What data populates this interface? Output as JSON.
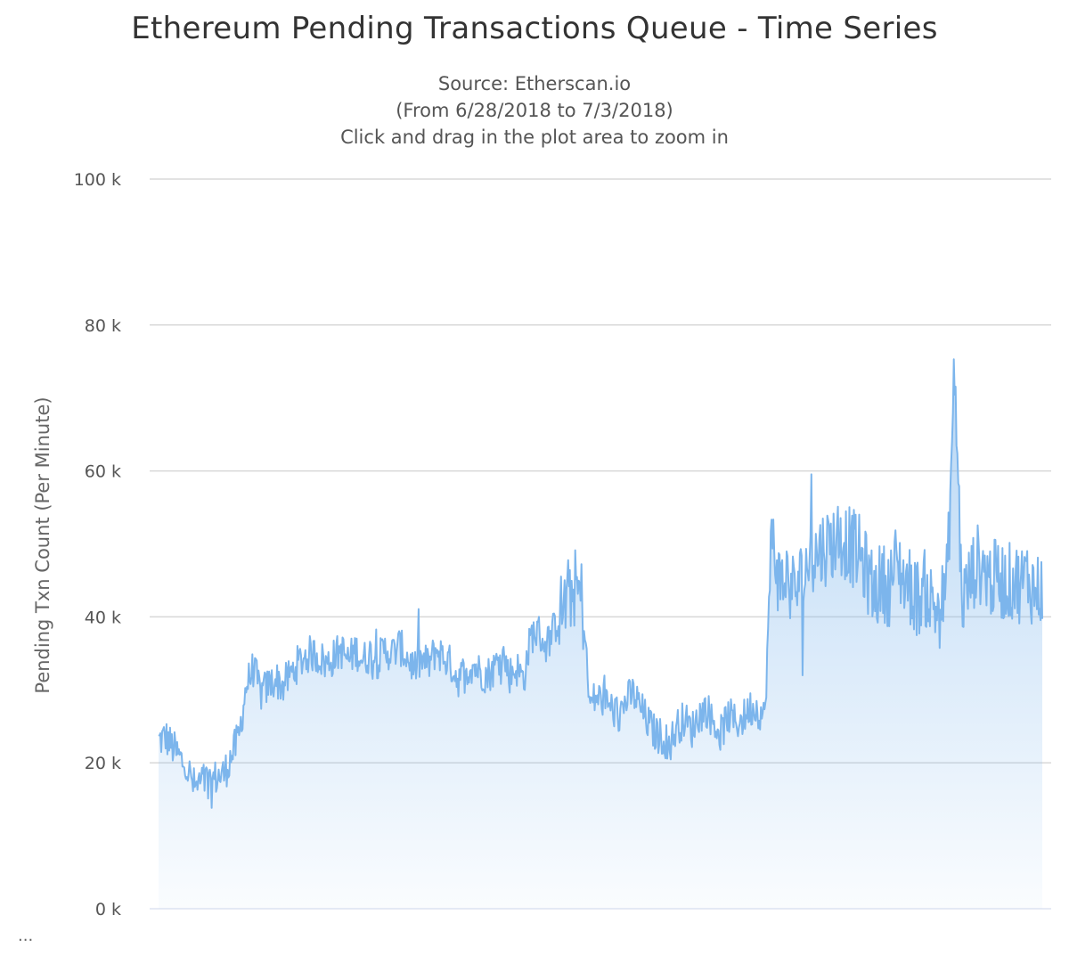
{
  "chart_data": {
    "type": "area",
    "title": "Ethereum Pending Transactions Queue - Time Series",
    "subtitle_lines": [
      "Source: Etherscan.io",
      "(From 6/28/2018 to 7/3/2018)",
      "Click and drag in the plot area to zoom in"
    ],
    "xlabel": "",
    "ylabel": "Pending Txn Count (Per Minute)",
    "ylim": [
      0,
      100000
    ],
    "y_ticks": [
      {
        "value": 0,
        "label": "0 k"
      },
      {
        "value": 20000,
        "label": "20 k"
      },
      {
        "value": 40000,
        "label": "40 k"
      },
      {
        "value": 60000,
        "label": "60 k"
      },
      {
        "value": 80000,
        "label": "80 k"
      },
      {
        "value": 100000,
        "label": "100 k"
      }
    ],
    "grid": true,
    "series": [
      {
        "name": "Pending Txn Count",
        "color": "#7cb5ec",
        "values": [
          23000,
          23500,
          22000,
          20500,
          19000,
          16500,
          17500,
          17500,
          18000,
          18500,
          21000,
          23500,
          30500,
          33000,
          29500,
          30500,
          31500,
          30500,
          32000,
          33500,
          34500,
          35000,
          34500,
          33500,
          34500,
          35500,
          34000,
          35500,
          34000,
          35000,
          34000,
          35500,
          35000,
          36000,
          34500,
          33000,
          34000,
          33500,
          35500,
          34500,
          33500,
          31500,
          32500,
          33500,
          32500,
          32000,
          33000,
          35500,
          32000,
          33000,
          31500,
          37500,
          38000,
          36000,
          38000,
          40500,
          42500,
          44000,
          42500,
          28000,
          29000,
          28500,
          27500,
          26500,
          28500,
          29500,
          27500,
          25500,
          24000,
          23500,
          22500,
          25000,
          26000,
          24500,
          26500,
          27500,
          25500,
          24000,
          26500,
          25500,
          26000,
          27500,
          27500,
          26000,
          52000,
          44500,
          45500,
          43500,
          45000,
          47500,
          48500,
          49500,
          50000,
          51000,
          50500,
          49500,
          48500,
          46000,
          43500,
          45000,
          44000,
          47500,
          45500,
          44000,
          42500,
          44000,
          41500,
          41000,
          45000,
          74000,
          42000,
          44500,
          47500,
          46500,
          45000,
          45500,
          44500,
          45000,
          44500,
          45500,
          43500,
          44000
        ]
      }
    ]
  },
  "footer": {
    "ellipsis": "..."
  }
}
